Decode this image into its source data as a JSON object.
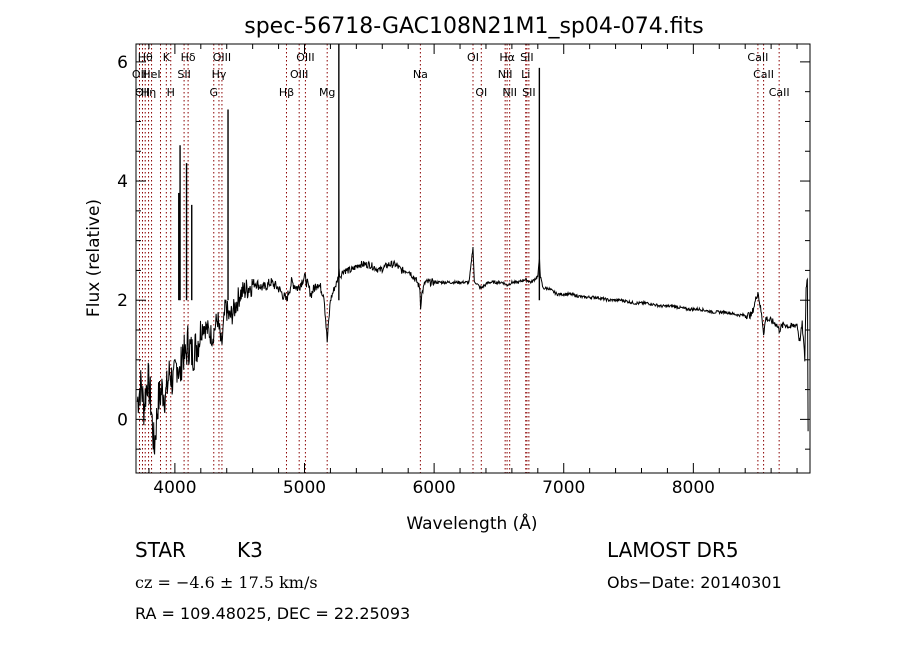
{
  "chart_data": {
    "type": "line",
    "title": "spec-56718-GAC108N21M1_sp04-074.fits",
    "xlabel": "Wavelength (Å)",
    "ylabel": "Flux (relative)",
    "xlim": [
      3700,
      8900
    ],
    "ylim": [
      -0.9,
      6.3
    ],
    "xticks": [
      {
        "value": 4000,
        "label": "4000"
      },
      {
        "value": 5000,
        "label": "5000"
      },
      {
        "value": 6000,
        "label": "6000"
      },
      {
        "value": 7000,
        "label": "7000"
      },
      {
        "value": 8000,
        "label": "8000"
      }
    ],
    "yticks": [
      {
        "value": 0,
        "label": "0"
      },
      {
        "value": 2,
        "label": "2"
      },
      {
        "value": 4,
        "label": "4"
      },
      {
        "value": 6,
        "label": "6"
      }
    ],
    "grid": false,
    "line_color": "#000000",
    "marker_color": "#8b0000",
    "series": [
      {
        "x": [
          3710,
          3740,
          3760,
          3790,
          3810,
          3840,
          3870,
          3900,
          3930,
          3960,
          3990,
          4020,
          4040,
          4060,
          4080,
          4100,
          4130,
          4160,
          4190,
          4220,
          4250,
          4290,
          4330,
          4360,
          4390,
          4420,
          4450,
          4500,
          4560,
          4620,
          4680,
          4740,
          4800,
          4860,
          4900,
          4950,
          5000,
          5050,
          5100,
          5150,
          5175,
          5200,
          5230,
          5250,
          5260,
          5267,
          5275,
          5300,
          5360,
          5420,
          5500,
          5580,
          5650,
          5700,
          5750,
          5800,
          5840,
          5870,
          5890,
          5896,
          5905,
          5930,
          5980,
          6050,
          6120,
          6200,
          6270,
          6300,
          6310,
          6320,
          6360,
          6420,
          6480,
          6530,
          6563,
          6600,
          6650,
          6700,
          6750,
          6800,
          6813,
          6820,
          6840,
          6880,
          6950,
          7050,
          7150,
          7250,
          7350,
          7450,
          7550,
          7650,
          7750,
          7850,
          7950,
          8050,
          8150,
          8250,
          8350,
          8450,
          8498,
          8530,
          8542,
          8560,
          8600,
          8640,
          8662,
          8700,
          8750,
          8800,
          8820,
          8840,
          8860,
          8870,
          8880,
          8885
        ],
        "y": [
          0.3,
          0.6,
          0.2,
          0.7,
          0.4,
          -0.5,
          0.3,
          0.5,
          0.4,
          0.8,
          0.6,
          1.0,
          0.7,
          1.2,
          1.0,
          1.3,
          1.1,
          1.2,
          1.4,
          1.6,
          1.5,
          1.4,
          1.7,
          1.2,
          1.9,
          1.7,
          1.8,
          2.1,
          2.2,
          2.3,
          2.2,
          2.3,
          2.2,
          2.0,
          2.3,
          2.2,
          2.4,
          2.1,
          2.3,
          2.1,
          1.3,
          2.0,
          2.2,
          2.3,
          2.4,
          2.5,
          2.4,
          2.5,
          2.5,
          2.6,
          2.6,
          2.5,
          2.6,
          2.6,
          2.5,
          2.5,
          2.4,
          2.3,
          2.2,
          1.9,
          2.1,
          2.3,
          2.3,
          2.3,
          2.3,
          2.3,
          2.3,
          2.9,
          2.3,
          2.3,
          2.2,
          2.3,
          2.3,
          2.3,
          2.25,
          2.3,
          2.3,
          2.35,
          2.3,
          2.4,
          2.7,
          2.4,
          2.2,
          2.2,
          2.1,
          2.1,
          2.05,
          2.05,
          2.0,
          2.0,
          1.95,
          1.95,
          1.9,
          1.9,
          1.85,
          1.85,
          1.8,
          1.8,
          1.75,
          1.75,
          2.15,
          1.7,
          1.45,
          1.7,
          1.65,
          1.6,
          1.5,
          1.6,
          1.55,
          1.6,
          1.3,
          1.6,
          1.0,
          2.2,
          2.4,
          -0.2
        ]
      }
    ],
    "spikes": [
      {
        "x": 4030,
        "peak": 3.8
      },
      {
        "x": 4040,
        "peak": 4.6
      },
      {
        "x": 4090,
        "peak": 4.3
      },
      {
        "x": 4130,
        "peak": 3.6
      },
      {
        "x": 4410,
        "peak": 5.2
      },
      {
        "x": 5265,
        "peak": 6.3
      },
      {
        "x": 6812,
        "peak": 5.9
      }
    ],
    "spectral_lines": [
      {
        "x": 3727,
        "label": "OII",
        "row": 1
      },
      {
        "x": 3750,
        "label": "OII",
        "row": 2
      },
      {
        "x": 3771,
        "label": "Hθ",
        "row": 0
      },
      {
        "x": 3797,
        "label": "Hη",
        "row": 2
      },
      {
        "x": 3820,
        "label": "HeI",
        "row": 1
      },
      {
        "x": 3889,
        "label": "",
        "row": 2
      },
      {
        "x": 3934,
        "label": "K",
        "row": 0
      },
      {
        "x": 3968,
        "label": "H",
        "row": 2
      },
      {
        "x": 4071,
        "label": "SII",
        "row": 1
      },
      {
        "x": 4102,
        "label": "Hδ",
        "row": 0
      },
      {
        "x": 4300,
        "label": "G",
        "row": 2
      },
      {
        "x": 4340,
        "label": "Hγ",
        "row": 1
      },
      {
        "x": 4363,
        "label": "OIII",
        "row": 0
      },
      {
        "x": 4861,
        "label": "Hβ",
        "row": 2
      },
      {
        "x": 4959,
        "label": "OIII",
        "row": 1
      },
      {
        "x": 5007,
        "label": "OIII",
        "row": 0
      },
      {
        "x": 5175,
        "label": "Mg",
        "row": 2
      },
      {
        "x": 5894,
        "label": "Na",
        "row": 1
      },
      {
        "x": 6300,
        "label": "OI",
        "row": 0
      },
      {
        "x": 6364,
        "label": "OI",
        "row": 2
      },
      {
        "x": 6548,
        "label": "NII",
        "row": 1
      },
      {
        "x": 6563,
        "label": "Hα",
        "row": 0
      },
      {
        "x": 6583,
        "label": "NII",
        "row": 2
      },
      {
        "x": 6707,
        "label": "Li",
        "row": 1
      },
      {
        "x": 6716,
        "label": "SII",
        "row": 0
      },
      {
        "x": 6731,
        "label": "SII",
        "row": 2
      },
      {
        "x": 8498,
        "label": "CaII",
        "row": 0
      },
      {
        "x": 8542,
        "label": "CaII",
        "row": 1
      },
      {
        "x": 8662,
        "label": "CaII",
        "row": 2
      }
    ]
  },
  "info": {
    "class_label": "STAR",
    "subclass_label": "K3",
    "survey": "LAMOST DR5",
    "cz": "cz = −4.6 ± 17.5 km/s",
    "obs_date": "Obs−Date: 20140301",
    "coords": "RA = 109.48025, DEC =  22.25093"
  }
}
